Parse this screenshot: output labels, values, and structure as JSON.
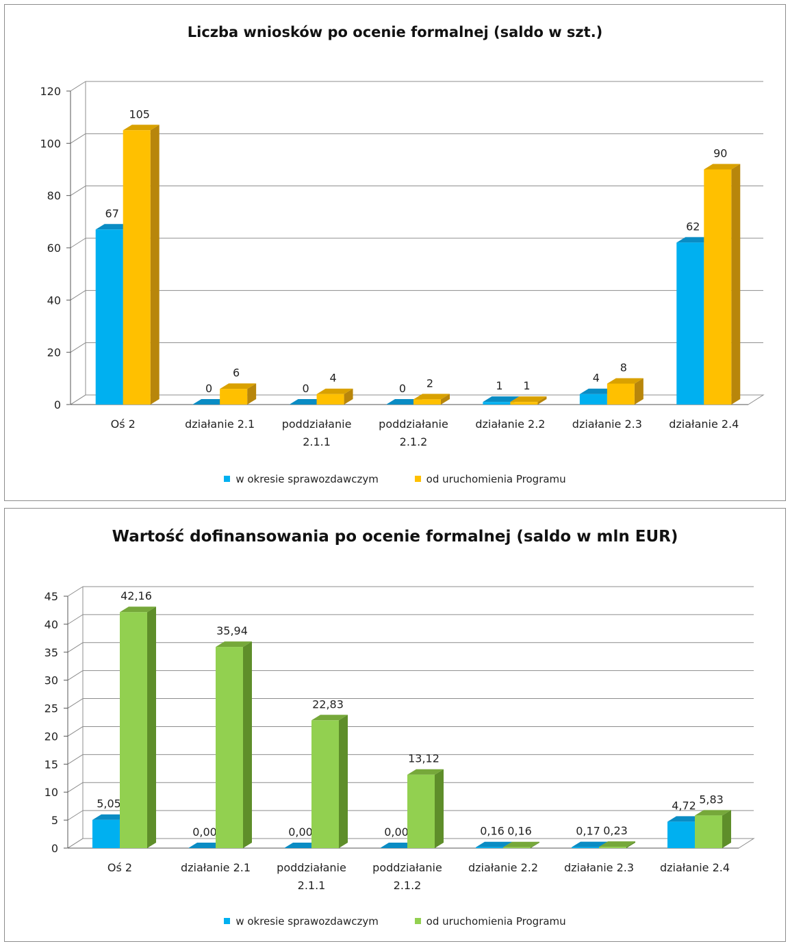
{
  "colors": {
    "period_front": "#00B0F0",
    "period_side": "#0087BD",
    "period_top": "#0A8CC4",
    "total1_front": "#FFC000",
    "total1_side": "#B8860B",
    "total1_top": "#D9A100",
    "total2_front": "#92D050",
    "total2_side": "#5E8E2A",
    "total2_top": "#76A83A"
  },
  "chart_data": [
    {
      "type": "bar",
      "title": "Liczba wniosków po ocenie formalnej (saldo w szt.)",
      "categories": [
        [
          "Oś 2"
        ],
        [
          "działanie 2.1"
        ],
        [
          "poddziałanie",
          "2.1.1"
        ],
        [
          "poddziałanie",
          "2.1.2"
        ],
        [
          "działanie 2.2"
        ],
        [
          "działanie 2.3"
        ],
        [
          "działanie 2.4"
        ]
      ],
      "series": [
        {
          "name": "w okresie sprawozdawczym",
          "values": [
            67,
            0,
            0,
            0,
            1,
            4,
            62
          ],
          "labels": [
            "67",
            "0",
            "0",
            "0",
            "1",
            "4",
            "62"
          ]
        },
        {
          "name": "od uruchomienia Programu",
          "values": [
            105,
            6,
            4,
            2,
            1,
            8,
            90
          ],
          "labels": [
            "105",
            "6",
            "4",
            "2",
            "1",
            "8",
            "90"
          ]
        }
      ],
      "ylim": [
        0,
        120
      ],
      "yticks": [
        0,
        20,
        40,
        60,
        80,
        100,
        120
      ],
      "grid": true,
      "legend": "bottom"
    },
    {
      "type": "bar",
      "title": "Wartość dofinansowania po ocenie formalnej (saldo w mln EUR)",
      "categories": [
        [
          "Oś 2"
        ],
        [
          "działanie 2.1"
        ],
        [
          "poddziałanie",
          "2.1.1"
        ],
        [
          "poddziałanie",
          "2.1.2"
        ],
        [
          "działanie 2.2"
        ],
        [
          "działanie 2.3"
        ],
        [
          "działanie 2.4"
        ]
      ],
      "series": [
        {
          "name": "w okresie sprawozdawczym",
          "values": [
            5.05,
            0.0,
            0.0,
            0.0,
            0.16,
            0.17,
            4.72
          ],
          "labels": [
            "5,05",
            "0,00",
            "0,00",
            "0,00",
            "0,16",
            "0,17",
            "4,72"
          ]
        },
        {
          "name": "od uruchomienia Programu",
          "values": [
            42.16,
            35.94,
            22.83,
            13.12,
            0.16,
            0.23,
            5.83
          ],
          "labels": [
            "42,16",
            "35,94",
            "22,83",
            "13,12",
            "0,16",
            "0,23",
            "5,83"
          ]
        }
      ],
      "ylim": [
        0,
        45
      ],
      "yticks": [
        0,
        5,
        10,
        15,
        20,
        25,
        30,
        35,
        40,
        45
      ],
      "grid": true,
      "legend": "bottom"
    }
  ]
}
